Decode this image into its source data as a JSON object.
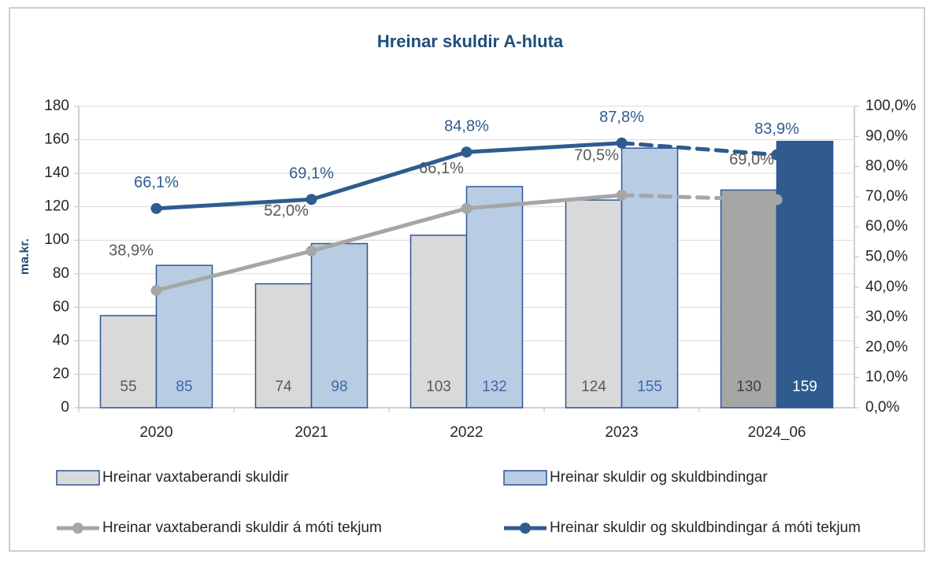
{
  "chart_data": {
    "type": "bar_line",
    "title": "Hreinar skuldir A-hluta",
    "ylabel": "ma.kr.",
    "categories": [
      "2020",
      "2021",
      "2022",
      "2023",
      "2024_06"
    ],
    "ylim": [
      0,
      180
    ],
    "yticks": [
      0,
      20,
      40,
      60,
      80,
      100,
      120,
      140,
      160,
      180
    ],
    "y2lim": [
      0,
      100
    ],
    "y2ticks": [
      {
        "value": 0,
        "label": "0,0%"
      },
      {
        "value": 10,
        "label": "10,0%"
      },
      {
        "value": 20,
        "label": "20,0%"
      },
      {
        "value": 30,
        "label": "30,0%"
      },
      {
        "value": 40,
        "label": "40,0%"
      },
      {
        "value": 50,
        "label": "50,0%"
      },
      {
        "value": 60,
        "label": "60,0%"
      },
      {
        "value": 70,
        "label": "70,0%"
      },
      {
        "value": 80,
        "label": "80,0%"
      },
      {
        "value": 90,
        "label": "90,0%"
      },
      {
        "value": 100,
        "label": "100,0%"
      }
    ],
    "series": [
      {
        "name": "Hreinar vaxtaberandi skuldir",
        "kind": "bar",
        "edgecolor": "#2f5597",
        "colors": [
          "#d9d9d9",
          "#d9d9d9",
          "#d9d9d9",
          "#d9d9d9",
          "#a6a6a6"
        ],
        "label_colors": [
          "#595959",
          "#595959",
          "#595959",
          "#595959",
          "#404040"
        ],
        "values": [
          55,
          74,
          103,
          124,
          130
        ]
      },
      {
        "name": "Hreinar skuldir og skuldbindingar",
        "kind": "bar",
        "edgecolor": "#2f5597",
        "colors": [
          "#b8cce4",
          "#b8cce4",
          "#b8cce4",
          "#b8cce4",
          "#2f5b8f"
        ],
        "label_colors": [
          "#3f68a8",
          "#3f68a8",
          "#3f68a8",
          "#3f68a8",
          "#ffffff"
        ],
        "values": [
          85,
          98,
          132,
          155,
          159
        ]
      },
      {
        "name": "Hreinar vaxtaberandi skuldir á móti tekjum",
        "kind": "line",
        "axis": "y2",
        "color": "#a6a6a6",
        "label_color": "#595959",
        "segment_styles": [
          "solid",
          "solid",
          "solid",
          "dashed"
        ],
        "values": [
          38.9,
          52.0,
          66.1,
          70.5,
          69.0
        ],
        "value_labels": [
          "38,9%",
          "52,0%",
          "66,1%",
          "70,5%",
          "69,0%"
        ]
      },
      {
        "name": "Hreinar skuldir og skuldbindingar á móti tekjum",
        "kind": "line",
        "axis": "y2",
        "color": "#2f5b8f",
        "label_color": "#2f5b8f",
        "segment_styles": [
          "solid",
          "solid",
          "solid",
          "dashed"
        ],
        "values": [
          66.1,
          69.1,
          84.8,
          87.8,
          83.9
        ],
        "value_labels": [
          "66,1%",
          "69,1%",
          "84,8%",
          "87,8%",
          "83,9%"
        ]
      }
    ]
  }
}
